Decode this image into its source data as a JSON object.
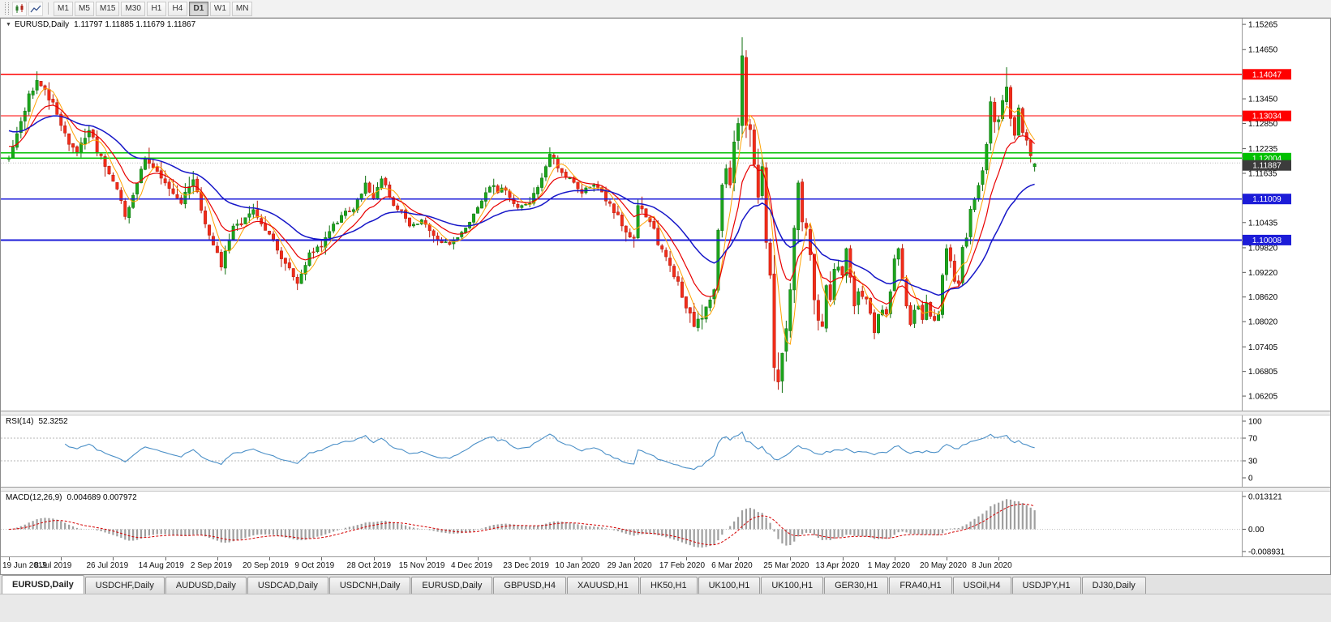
{
  "toolbar": {
    "timeframes": [
      {
        "label": "M1",
        "active": false
      },
      {
        "label": "M5",
        "active": false
      },
      {
        "label": "M15",
        "active": false
      },
      {
        "label": "M30",
        "active": false
      },
      {
        "label": "H1",
        "active": false
      },
      {
        "label": "H4",
        "active": false
      },
      {
        "label": "D1",
        "active": true
      },
      {
        "label": "W1",
        "active": false
      },
      {
        "label": "MN",
        "active": false
      }
    ]
  },
  "chart": {
    "collapse_icon": "▼",
    "symbol": "EURUSD,Daily",
    "ohlc": "1.11797 1.11885 1.11679 1.11867",
    "current_price": {
      "value": 1.11887,
      "label": "1.11887",
      "color": "#3c3c3c"
    },
    "hlines": [
      {
        "price": 1.14047,
        "color": "#FF0000",
        "label": "1.14047",
        "width": 1.2
      },
      {
        "price": 1.13034,
        "color": "#FF0000",
        "label": "1.13034",
        "width": 1.2
      },
      {
        "price": 1.1213,
        "color": "#00C000",
        "label": "",
        "width": 1.6
      },
      {
        "price": 1.12004,
        "color": "#00C000",
        "label": "1.12004",
        "width": 1.6
      },
      {
        "price": 1.11009,
        "color": "#1C1CD8",
        "label": "1.11009",
        "width": 1.8
      },
      {
        "price": 1.10008,
        "color": "#1C1CD8",
        "label": "1.10008",
        "width": 1.8
      }
    ],
    "scale_labels": [
      "1.15265",
      "1.14650",
      "1.13450",
      "1.12850",
      "1.12235",
      "1.11635",
      "1.10435",
      "1.09820",
      "1.09220",
      "1.08620",
      "1.08020",
      "1.07405",
      "1.06805",
      "1.06205"
    ],
    "date_labels": [
      "19 Jun 2019",
      "8 Jul 2019",
      "26 Jul 2019",
      "14 Aug 2019",
      "2 Sep 2019",
      "20 Sep 2019",
      "9 Oct 2019",
      "28 Oct 2019",
      "15 Nov 2019",
      "4 Dec 2019",
      "23 Dec 2019",
      "10 Jan 2020",
      "29 Jan 2020",
      "17 Feb 2020",
      "6 Mar 2020",
      "25 Mar 2020",
      "13 Apr 2020",
      "1 May 2020",
      "20 May 2020",
      "8 Jun 2020"
    ]
  },
  "rsi": {
    "title": "RSI(14)",
    "value": "52.3252",
    "levels": [
      "100",
      "70",
      "30",
      "0"
    ],
    "line_color": "#4a8fc7"
  },
  "macd": {
    "title": "MACD(12,26,9)",
    "values": "0.004689 0.007972",
    "scale": [
      "0.013121",
      "0.00",
      "-0.008931"
    ],
    "histogram_color": "#9f9f9f",
    "signal_color": "#d40000"
  },
  "tabs": [
    {
      "label": "EURUSD,Daily",
      "active": true
    },
    {
      "label": "USDCHF,Daily",
      "active": false
    },
    {
      "label": "AUDUSD,Daily",
      "active": false
    },
    {
      "label": "USDCAD,Daily",
      "active": false
    },
    {
      "label": "USDCNH,Daily",
      "active": false
    },
    {
      "label": "EURUSD,Daily",
      "active": false
    },
    {
      "label": "GBPUSD,H4",
      "active": false
    },
    {
      "label": "XAUUSD,H1",
      "active": false
    },
    {
      "label": "HK50,H1",
      "active": false
    },
    {
      "label": "UK100,H1",
      "active": false
    },
    {
      "label": "UK100,H1",
      "active": false
    },
    {
      "label": "GER30,H1",
      "active": false
    },
    {
      "label": "FRA40,H1",
      "active": false
    },
    {
      "label": "USOil,H4",
      "active": false
    },
    {
      "label": "USDJPY,H1",
      "active": false
    },
    {
      "label": "DJ30,Daily",
      "active": false
    }
  ],
  "chart_data": {
    "type": "candlestick",
    "symbol": "EURUSD",
    "period": "Daily",
    "visible_range": {
      "start": "19 Jun 2019",
      "end": "19 Jun 2020"
    },
    "price_axis": {
      "min": 1.06205,
      "max": 1.15265
    },
    "num_candles": 257,
    "close_anchors": [
      [
        0,
        1.12
      ],
      [
        3,
        1.129
      ],
      [
        7,
        1.139
      ],
      [
        9,
        1.1368
      ],
      [
        13,
        1.128
      ],
      [
        17,
        1.1215
      ],
      [
        20,
        1.1268
      ],
      [
        24,
        1.118
      ],
      [
        27,
        1.1125
      ],
      [
        29,
        1.1058
      ],
      [
        31,
        1.111
      ],
      [
        34,
        1.12
      ],
      [
        37,
        1.1168
      ],
      [
        39,
        1.114
      ],
      [
        43,
        1.109
      ],
      [
        46,
        1.1148
      ],
      [
        49,
        1.104
      ],
      [
        52,
        1.097
      ],
      [
        53,
        1.0935
      ],
      [
        56,
        1.1035
      ],
      [
        61,
        1.1075
      ],
      [
        63,
        1.104
      ],
      [
        65,
        1.1015
      ],
      [
        68,
        1.0955
      ],
      [
        72,
        1.0895
      ],
      [
        75,
        1.097
      ],
      [
        78,
        1.0985
      ],
      [
        81,
        1.104
      ],
      [
        86,
        1.1075
      ],
      [
        89,
        1.114
      ],
      [
        91,
        1.11
      ],
      [
        93,
        1.115
      ],
      [
        96,
        1.1085
      ],
      [
        100,
        1.1035
      ],
      [
        103,
        1.105
      ],
      [
        107,
        1.1
      ],
      [
        110,
        1.099
      ],
      [
        113,
        1.102
      ],
      [
        117,
        1.108
      ],
      [
        120,
        1.113
      ],
      [
        124,
        1.1122
      ],
      [
        127,
        1.108
      ],
      [
        130,
        1.109
      ],
      [
        134,
        1.118
      ],
      [
        135,
        1.121
      ],
      [
        138,
        1.1165
      ],
      [
        143,
        1.1115
      ],
      [
        146,
        1.1135
      ],
      [
        150,
        1.109
      ],
      [
        154,
        1.102
      ],
      [
        156,
        1.1005
      ],
      [
        157,
        1.1085
      ],
      [
        160,
        1.1045
      ],
      [
        164,
        1.096
      ],
      [
        167,
        1.09
      ],
      [
        169,
        1.0835
      ],
      [
        171,
        1.079
      ],
      [
        173,
        1.081
      ],
      [
        175,
        1.0855
      ],
      [
        176,
        1.088
      ],
      [
        177,
        1.1025
      ],
      [
        178,
        1.1135
      ],
      [
        179,
        1.1175
      ],
      [
        180,
        1.1135
      ],
      [
        181,
        1.124
      ],
      [
        182,
        1.1285
      ],
      [
        183,
        1.145
      ],
      [
        184,
        1.128
      ],
      [
        185,
        1.127
      ],
      [
        186,
        1.1185
      ],
      [
        187,
        1.1105
      ],
      [
        188,
        1.118
      ],
      [
        189,
        1.0995
      ],
      [
        190,
        1.0915
      ],
      [
        191,
        1.069
      ],
      [
        192,
        1.0655
      ],
      [
        193,
        1.0725
      ],
      [
        194,
        1.0785
      ],
      [
        195,
        1.088
      ],
      [
        196,
        1.103
      ],
      [
        197,
        1.114
      ],
      [
        198,
        1.1045
      ],
      [
        199,
        1.103
      ],
      [
        200,
        1.0965
      ],
      [
        201,
        1.0855
      ],
      [
        202,
        1.0805
      ],
      [
        203,
        1.079
      ],
      [
        204,
        1.089
      ],
      [
        205,
        1.0855
      ],
      [
        206,
        1.093
      ],
      [
        207,
        1.0935
      ],
      [
        208,
        1.0915
      ],
      [
        209,
        1.098
      ],
      [
        210,
        1.091
      ],
      [
        211,
        1.084
      ],
      [
        212,
        1.0875
      ],
      [
        213,
        1.0863
      ],
      [
        214,
        1.0857
      ],
      [
        215,
        1.0822
      ],
      [
        216,
        1.0775
      ],
      [
        217,
        1.082
      ],
      [
        218,
        1.083
      ],
      [
        219,
        1.082
      ],
      [
        220,
        1.0875
      ],
      [
        221,
        1.0955
      ],
      [
        222,
        1.098
      ],
      [
        223,
        1.0905
      ],
      [
        224,
        1.084
      ],
      [
        225,
        1.0795
      ],
      [
        226,
        1.083
      ],
      [
        227,
        1.084
      ],
      [
        228,
        1.0807
      ],
      [
        229,
        1.0848
      ],
      [
        230,
        1.0815
      ],
      [
        231,
        1.0805
      ],
      [
        232,
        1.082
      ],
      [
        233,
        1.0915
      ],
      [
        234,
        1.098
      ],
      [
        235,
        1.095
      ],
      [
        236,
        1.09
      ],
      [
        237,
        1.0895
      ],
      [
        238,
        1.0983
      ],
      [
        239,
        1.1006
      ],
      [
        240,
        1.1076
      ],
      [
        241,
        1.1101
      ],
      [
        242,
        1.1134
      ],
      [
        243,
        1.117
      ],
      [
        244,
        1.1234
      ],
      [
        245,
        1.1338
      ],
      [
        246,
        1.1289
      ],
      [
        247,
        1.1294
      ],
      [
        248,
        1.1341
      ],
      [
        249,
        1.1374
      ],
      [
        250,
        1.1297
      ],
      [
        251,
        1.1256
      ],
      [
        252,
        1.1323
      ],
      [
        253,
        1.1263
      ],
      [
        254,
        1.1244
      ],
      [
        255,
        1.1206
      ],
      [
        256,
        1.1187
      ]
    ],
    "volatility_anchors": [
      [
        0,
        0.0042
      ],
      [
        30,
        0.004
      ],
      [
        60,
        0.0036
      ],
      [
        100,
        0.003
      ],
      [
        140,
        0.0028
      ],
      [
        163,
        0.004
      ],
      [
        175,
        0.0055
      ],
      [
        185,
        0.0085
      ],
      [
        195,
        0.0075
      ],
      [
        205,
        0.005
      ],
      [
        215,
        0.0036
      ],
      [
        232,
        0.0032
      ],
      [
        244,
        0.0046
      ],
      [
        256,
        0.0036
      ]
    ],
    "overrides": [
      {
        "i": 7,
        "h": 1.1412
      },
      {
        "i": 53,
        "l": 1.0926
      },
      {
        "i": 72,
        "l": 1.0879
      },
      {
        "i": 172,
        "l": 1.0778
      },
      {
        "i": 183,
        "h": 1.1495
      },
      {
        "i": 192,
        "l": 1.0636
      },
      {
        "i": 249,
        "h": 1.1422
      },
      {
        "i": 256,
        "o": 1.11797,
        "h": 1.11885,
        "l": 1.11679,
        "c": 1.11867
      }
    ],
    "up_color": "#1CA51C",
    "down_color": "#F22C19",
    "moving_averages": [
      {
        "name": "SMA5",
        "color": "#FFA200"
      },
      {
        "name": "EMA11",
        "color": "#E80000"
      },
      {
        "name": "EMA30",
        "color": "#1616C8"
      }
    ],
    "indicators": [
      {
        "name": "RSI",
        "period": 14,
        "current": 52.3252
      },
      {
        "name": "MACD",
        "params": "12,26,9",
        "main": 0.004689,
        "signal": 0.007972,
        "max": 0.013121,
        "min": -0.008931
      }
    ]
  }
}
